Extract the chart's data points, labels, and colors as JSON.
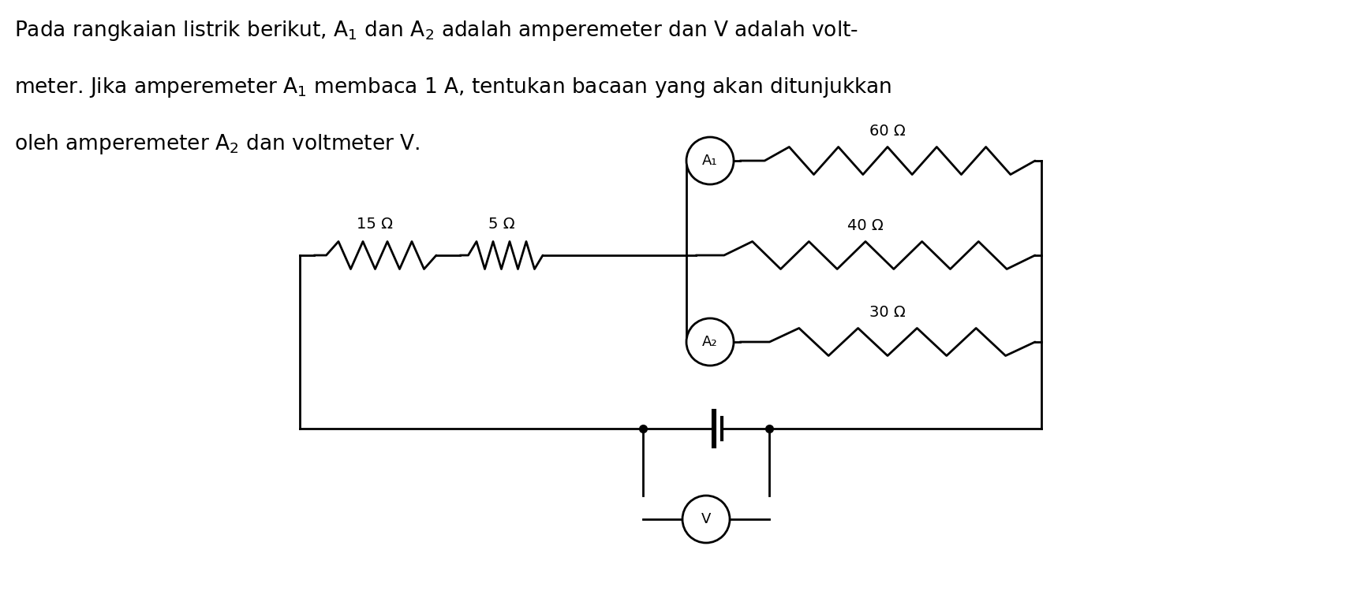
{
  "bg_color": "#ffffff",
  "line_color": "#000000",
  "resistor_15": "15 Ω",
  "resistor_5": "5 Ω",
  "resistor_60": "60 Ω",
  "resistor_40": "40 Ω",
  "resistor_30": "30 Ω",
  "label_A1": "A₁",
  "label_A2": "A₂",
  "label_V": "V",
  "title_line1": "Pada rangkaian listrik berikut, A$_1$ dan A$_2$ adalah amperemeter dan V adalah volt-",
  "title_line2": "meter. Jika amperemeter A$_1$ membaca 1 A, tentukan bacaan yang akan ditunjukkan",
  "title_line3": "oleh amperemeter A$_2$ dan voltmeter V.",
  "font_size_title": 19,
  "font_size_component": 14,
  "font_size_meter": 13,
  "lw": 2.0,
  "XL": 3.8,
  "XJ1": 8.7,
  "XJ2": 13.2,
  "YH": 5.55,
  "YM": 4.35,
  "YL": 3.25,
  "YBOT": 2.15,
  "YVOLT": 1.0,
  "meter_r": 0.3
}
